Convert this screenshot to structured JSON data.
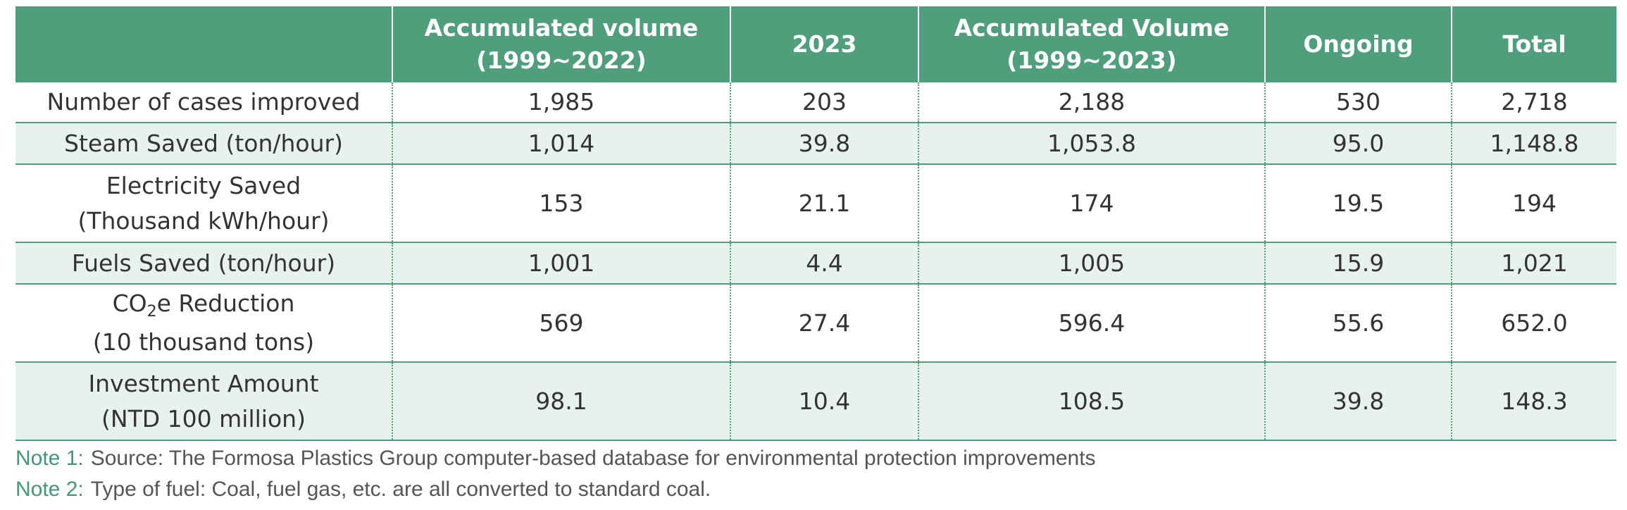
{
  "table": {
    "headers": [
      {
        "line1": "",
        "line2": ""
      },
      {
        "line1": "Accumulated volume",
        "line2": "(1999~2022)"
      },
      {
        "line1": "2023",
        "line2": ""
      },
      {
        "line1": "Accumulated Volume",
        "line2": "(1999~2023)"
      },
      {
        "line1": "Ongoing",
        "line2": ""
      },
      {
        "line1": "Total",
        "line2": ""
      }
    ],
    "rows": [
      {
        "label": "Number of cases improved",
        "label2": "",
        "values": [
          "1,985",
          "203",
          "2,188",
          "530",
          "2,718"
        ]
      },
      {
        "label": "Steam Saved (ton/hour)",
        "label2": "",
        "values": [
          "1,014",
          "39.8",
          "1,053.8",
          "95.0",
          "1,148.8"
        ]
      },
      {
        "label": "Electricity Saved",
        "label2": "(Thousand kWh/hour)",
        "values": [
          "153",
          "21.1",
          "174",
          "19.5",
          "194"
        ]
      },
      {
        "label": "Fuels Saved (ton/hour)",
        "label2": "",
        "values": [
          "1,001",
          "4.4",
          "1,005",
          "15.9",
          "1,021"
        ]
      },
      {
        "label_pre": "CO",
        "label_sub": "2",
        "label_post": "e Reduction",
        "label2": "(10 thousand tons)",
        "values": [
          "569",
          "27.4",
          "596.4",
          "55.6",
          "652.0"
        ]
      },
      {
        "label": "Investment Amount",
        "label2": "(NTD 100 million)",
        "values": [
          "98.1",
          "10.4",
          "108.5",
          "39.8",
          "148.3"
        ]
      }
    ]
  },
  "notes": [
    {
      "label": "Note 1:",
      "text": "Source: The Formosa Plastics Group computer-based database for environmental protection improvements"
    },
    {
      "label": "Note 2:",
      "text": "Type of fuel: Coal, fuel gas, etc. are all converted to standard coal."
    }
  ],
  "colors": {
    "header_bg": "#4f9f7c",
    "row_shade": "#e7f2ed",
    "note_label": "#3f9a73",
    "text": "#333333"
  }
}
